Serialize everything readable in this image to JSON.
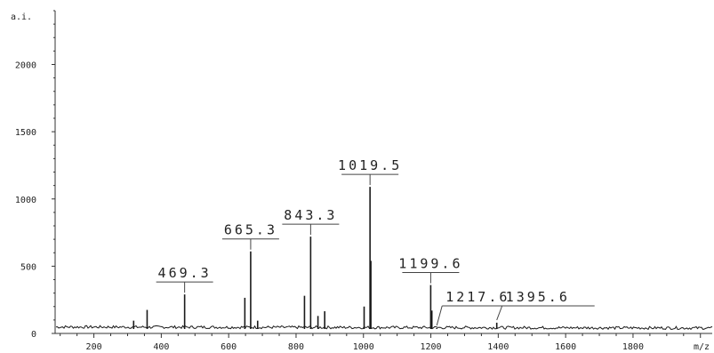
{
  "chart_data": {
    "type": "line",
    "ylabel": "a.i.",
    "xlabel": "m/z",
    "xlim": [
      85,
      2035
    ],
    "ylim": [
      0,
      2400
    ],
    "xticks": [
      200,
      400,
      600,
      800,
      1000,
      1200,
      1400,
      1600,
      1800
    ],
    "yticks": [
      0,
      500,
      1000,
      1500,
      2000
    ],
    "grid": false,
    "line_color": "#1a1a1a",
    "peaks": [
      {
        "mz": 318,
        "intensity": 95
      },
      {
        "mz": 358,
        "intensity": 175
      },
      {
        "mz": 469.3,
        "intensity": 290,
        "label": "469.3"
      },
      {
        "mz": 648,
        "intensity": 265
      },
      {
        "mz": 665.3,
        "intensity": 610,
        "label": "665.3"
      },
      {
        "mz": 686,
        "intensity": 95
      },
      {
        "mz": 825,
        "intensity": 280
      },
      {
        "mz": 843.3,
        "intensity": 720,
        "label": "843.3"
      },
      {
        "mz": 865,
        "intensity": 130
      },
      {
        "mz": 885,
        "intensity": 165
      },
      {
        "mz": 1002,
        "intensity": 200
      },
      {
        "mz": 1019.5,
        "intensity": 1090,
        "label": "1019.5"
      },
      {
        "mz": 1022,
        "intensity": 540
      },
      {
        "mz": 1199.6,
        "intensity": 360,
        "label": "1199.6"
      },
      {
        "mz": 1203,
        "intensity": 170
      },
      {
        "mz": 1217.6,
        "intensity": 40,
        "label": "1217.6"
      },
      {
        "mz": 1395.6,
        "intensity": 80,
        "label": "1395.6"
      }
    ]
  }
}
